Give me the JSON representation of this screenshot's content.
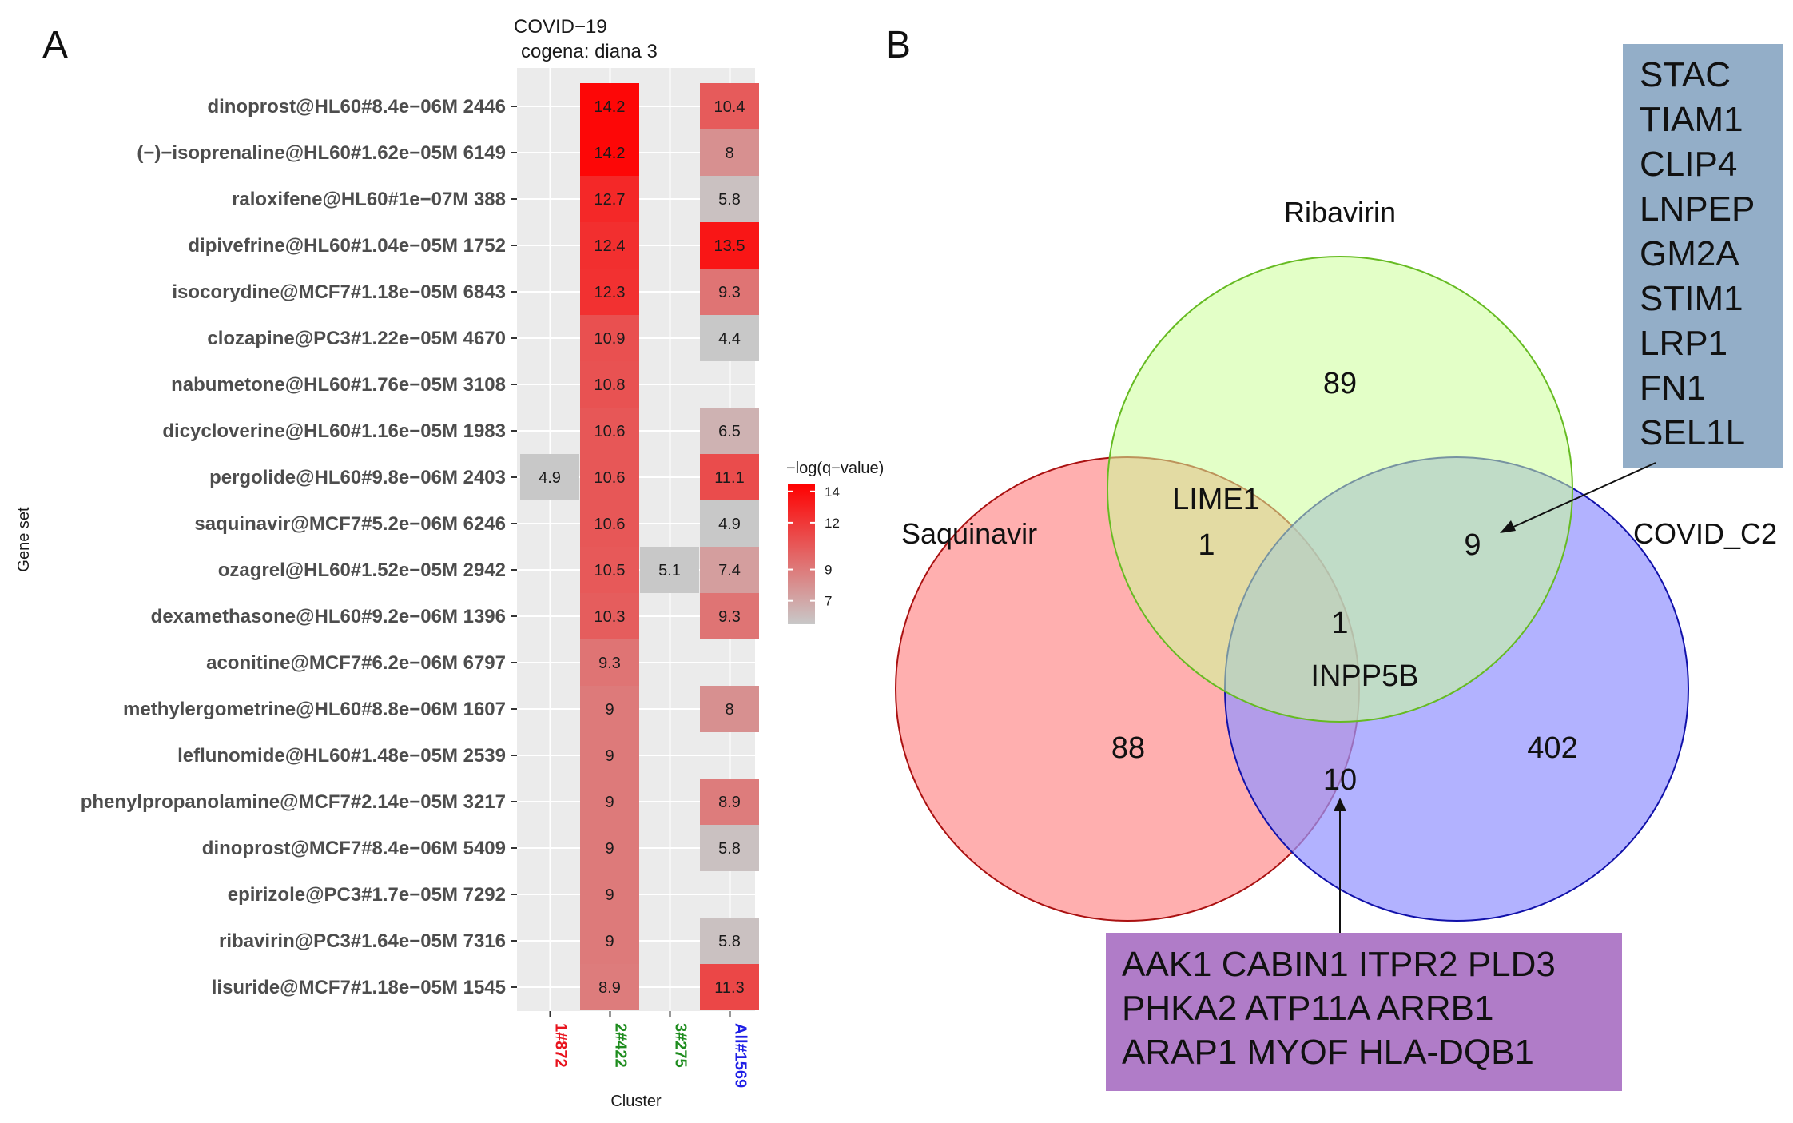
{
  "panels": {
    "a": "A",
    "b": "B"
  },
  "heatmap": {
    "title_line1": "COVID−19",
    "title_line2": "cogena: diana 3",
    "x_axis_title": "Cluster",
    "y_axis_title": "Gene set",
    "legend_title": "−log(q−value)",
    "legend_ticks": [
      14,
      12,
      9,
      7
    ],
    "legend_range": [
      5.5,
      14.5
    ],
    "colors": {
      "low": "#c8c8c8",
      "high": "#ff0000",
      "panel_bg": "#ebebeb",
      "grid": "#ffffff"
    }
  },
  "chart_data": [
    {
      "type": "heatmap",
      "title": "COVID−19 cogena: diana 3",
      "xlabel": "Cluster",
      "ylabel": "Gene set",
      "legend_title": "−log(q−value)",
      "columns": [
        {
          "label": "1#872",
          "color": "#e8141e"
        },
        {
          "label": "2#422",
          "color": "#1e8c1e"
        },
        {
          "label": "3#275",
          "color": "#1e8c1e"
        },
        {
          "label": "All#1569",
          "color": "#1e1ee6"
        }
      ],
      "rows": [
        "dinoprost@HL60#8.4e−06M 2446",
        "(−)−isoprenaline@HL60#1.62e−05M 6149",
        "raloxifene@HL60#1e−07M 388",
        "dipivefrine@HL60#1.04e−05M 1752",
        "isocorydine@MCF7#1.18e−05M 6843",
        "clozapine@PC3#1.22e−05M 4670",
        "nabumetone@HL60#1.76e−05M 3108",
        "dicycloverine@HL60#1.16e−05M 1983",
        "pergolide@HL60#9.8e−06M 2403",
        "saquinavir@MCF7#5.2e−06M 6246",
        "ozagrel@HL60#1.52e−05M 2942",
        "dexamethasone@HL60#9.2e−06M 1396",
        "aconitine@MCF7#6.2e−06M 6797",
        "methylergometrine@HL60#8.8e−06M 1607",
        "leflunomide@HL60#1.48e−05M 2539",
        "phenylpropanolamine@MCF7#2.14e−05M 3217",
        "dinoprost@MCF7#8.4e−06M 5409",
        "epirizole@PC3#1.7e−05M 7292",
        "ribavirin@PC3#1.64e−05M 7316",
        "lisuride@MCF7#1.18e−05M 1545"
      ],
      "values": [
        [
          null,
          14.2,
          null,
          10.4
        ],
        [
          null,
          14.2,
          null,
          8
        ],
        [
          null,
          12.7,
          null,
          5.8
        ],
        [
          null,
          12.4,
          null,
          13.5
        ],
        [
          null,
          12.3,
          null,
          9.3
        ],
        [
          null,
          10.9,
          null,
          4.4
        ],
        [
          null,
          10.8,
          null,
          null
        ],
        [
          null,
          10.6,
          null,
          6.5
        ],
        [
          4.9,
          10.6,
          null,
          11.1
        ],
        [
          null,
          10.6,
          null,
          4.9
        ],
        [
          null,
          10.5,
          5.1,
          7.4
        ],
        [
          null,
          10.3,
          null,
          9.3
        ],
        [
          null,
          9.3,
          null,
          null
        ],
        [
          null,
          9,
          null,
          8
        ],
        [
          null,
          9,
          null,
          null
        ],
        [
          null,
          9,
          null,
          8.9
        ],
        [
          null,
          9,
          null,
          5.8
        ],
        [
          null,
          9,
          null,
          null
        ],
        [
          null,
          9,
          null,
          5.8
        ],
        [
          null,
          8.9,
          null,
          11.3
        ]
      ]
    },
    {
      "type": "venn",
      "sets": [
        {
          "name": "Ribavirin",
          "color": "#ccff99",
          "stroke": "#66bb22"
        },
        {
          "name": "Saquinavir",
          "color": "#ff9494",
          "stroke": "#aa1111"
        },
        {
          "name": "COVID_C2",
          "color": "#9494ff",
          "stroke": "#1111aa"
        }
      ],
      "regions": [
        {
          "sets": [
            "Ribavirin"
          ],
          "count": 89
        },
        {
          "sets": [
            "Saquinavir"
          ],
          "count": 88
        },
        {
          "sets": [
            "COVID_C2"
          ],
          "count": 402
        },
        {
          "sets": [
            "Ribavirin",
            "Saquinavir"
          ],
          "count": 1,
          "gene": "LIME1"
        },
        {
          "sets": [
            "Ribavirin",
            "COVID_C2"
          ],
          "count": 9
        },
        {
          "sets": [
            "Saquinavir",
            "COVID_C2"
          ],
          "count": 10
        },
        {
          "sets": [
            "Ribavirin",
            "Saquinavir",
            "COVID_C2"
          ],
          "count": 1,
          "gene": "INPP5B"
        }
      ]
    }
  ],
  "gene_boxes": {
    "ribavirin_covid": {
      "color": "#93aec8",
      "genes": [
        "STAC",
        "TIAM1",
        "CLIP4",
        "LNPEP",
        "GM2A",
        "STIM1",
        "LRP1",
        "FN1",
        "SEL1L"
      ]
    },
    "saquinavir_covid": {
      "color": "#b07cc8",
      "lines": [
        "AAK1 CABIN1 ITPR2 PLD3",
        "PHKA2 ATP11A ARRB1",
        "ARAP1 MYOF HLA-DQB1"
      ]
    }
  }
}
